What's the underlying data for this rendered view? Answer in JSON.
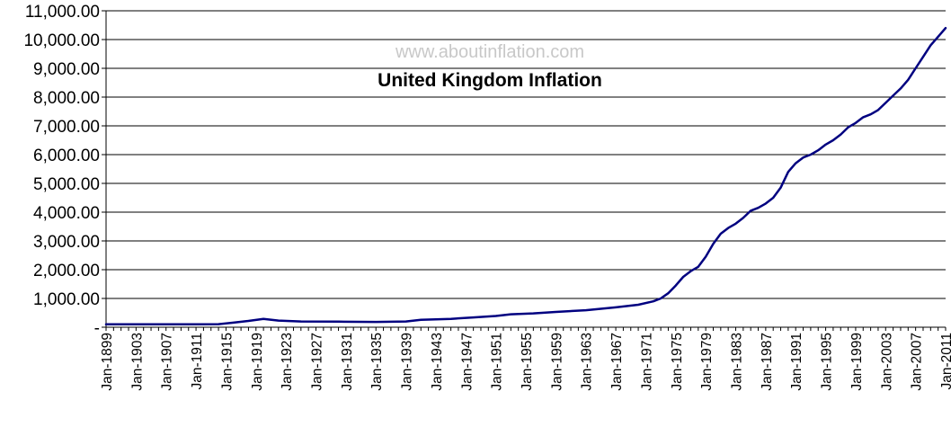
{
  "chart_data": {
    "type": "line",
    "title": "United Kingdom  Inflation",
    "watermark": "www.aboutinflation.com",
    "xlabel": "",
    "ylabel": "",
    "ylim": [
      0,
      11000
    ],
    "yticks": [
      {
        "value": 0,
        "label": "-"
      },
      {
        "value": 1000,
        "label": "1,000.00"
      },
      {
        "value": 2000,
        "label": "2,000.00"
      },
      {
        "value": 3000,
        "label": "3,000.00"
      },
      {
        "value": 4000,
        "label": "4,000.00"
      },
      {
        "value": 5000,
        "label": "5,000.00"
      },
      {
        "value": 6000,
        "label": "6,000.00"
      },
      {
        "value": 7000,
        "label": "7,000.00"
      },
      {
        "value": 8000,
        "label": "8,000.00"
      },
      {
        "value": 9000,
        "label": "9,000.00"
      },
      {
        "value": 10000,
        "label": "10,000.00"
      },
      {
        "value": 11000,
        "label": "11,000.00"
      }
    ],
    "xlim": [
      1899,
      2011
    ],
    "xticks": [
      {
        "value": 1899,
        "label": "Jan-1899"
      },
      {
        "value": 1903,
        "label": "Jan-1903"
      },
      {
        "value": 1907,
        "label": "Jan-1907"
      },
      {
        "value": 1911,
        "label": "Jan-1911"
      },
      {
        "value": 1915,
        "label": "Jan-1915"
      },
      {
        "value": 1919,
        "label": "Jan-1919"
      },
      {
        "value": 1923,
        "label": "Jan-1923"
      },
      {
        "value": 1927,
        "label": "Jan-1927"
      },
      {
        "value": 1931,
        "label": "Jan-1931"
      },
      {
        "value": 1935,
        "label": "Jan-1935"
      },
      {
        "value": 1939,
        "label": "Jan-1939"
      },
      {
        "value": 1943,
        "label": "Jan-1943"
      },
      {
        "value": 1947,
        "label": "Jan-1947"
      },
      {
        "value": 1951,
        "label": "Jan-1951"
      },
      {
        "value": 1955,
        "label": "Jan-1955"
      },
      {
        "value": 1959,
        "label": "Jan-1959"
      },
      {
        "value": 1963,
        "label": "Jan-1963"
      },
      {
        "value": 1967,
        "label": "Jan-1967"
      },
      {
        "value": 1971,
        "label": "Jan-1971"
      },
      {
        "value": 1975,
        "label": "Jan-1975"
      },
      {
        "value": 1979,
        "label": "Jan-1979"
      },
      {
        "value": 1983,
        "label": "Jan-1983"
      },
      {
        "value": 1987,
        "label": "Jan-1987"
      },
      {
        "value": 1991,
        "label": "Jan-1991"
      },
      {
        "value": 1995,
        "label": "Jan-1995"
      },
      {
        "value": 1999,
        "label": "Jan-1999"
      },
      {
        "value": 2003,
        "label": "Jan-2003"
      },
      {
        "value": 2007,
        "label": "Jan-2007"
      },
      {
        "value": 2011,
        "label": "Jan-2011"
      }
    ],
    "grid": true,
    "legend": "none",
    "series": [
      {
        "color": "#000080",
        "points": [
          {
            "x": 1899,
            "y": 100
          },
          {
            "x": 1903,
            "y": 100
          },
          {
            "x": 1907,
            "y": 100
          },
          {
            "x": 1911,
            "y": 100
          },
          {
            "x": 1914,
            "y": 105
          },
          {
            "x": 1916,
            "y": 160
          },
          {
            "x": 1918,
            "y": 220
          },
          {
            "x": 1920,
            "y": 290
          },
          {
            "x": 1922,
            "y": 230
          },
          {
            "x": 1925,
            "y": 200
          },
          {
            "x": 1930,
            "y": 195
          },
          {
            "x": 1935,
            "y": 185
          },
          {
            "x": 1939,
            "y": 200
          },
          {
            "x": 1941,
            "y": 260
          },
          {
            "x": 1945,
            "y": 290
          },
          {
            "x": 1948,
            "y": 340
          },
          {
            "x": 1951,
            "y": 390
          },
          {
            "x": 1953,
            "y": 450
          },
          {
            "x": 1956,
            "y": 480
          },
          {
            "x": 1959,
            "y": 530
          },
          {
            "x": 1963,
            "y": 590
          },
          {
            "x": 1967,
            "y": 690
          },
          {
            "x": 1970,
            "y": 780
          },
          {
            "x": 1972,
            "y": 900
          },
          {
            "x": 1973,
            "y": 1000
          },
          {
            "x": 1974,
            "y": 1180
          },
          {
            "x": 1975,
            "y": 1450
          },
          {
            "x": 1976,
            "y": 1750
          },
          {
            "x": 1977,
            "y": 1950
          },
          {
            "x": 1978,
            "y": 2100
          },
          {
            "x": 1979,
            "y": 2450
          },
          {
            "x": 1980,
            "y": 2900
          },
          {
            "x": 1981,
            "y": 3250
          },
          {
            "x": 1982,
            "y": 3450
          },
          {
            "x": 1983,
            "y": 3600
          },
          {
            "x": 1984,
            "y": 3800
          },
          {
            "x": 1985,
            "y": 4050
          },
          {
            "x": 1986,
            "y": 4150
          },
          {
            "x": 1987,
            "y": 4300
          },
          {
            "x": 1988,
            "y": 4500
          },
          {
            "x": 1989,
            "y": 4850
          },
          {
            "x": 1990,
            "y": 5400
          },
          {
            "x": 1991,
            "y": 5700
          },
          {
            "x": 1992,
            "y": 5900
          },
          {
            "x": 1993,
            "y": 6000
          },
          {
            "x": 1994,
            "y": 6150
          },
          {
            "x": 1995,
            "y": 6350
          },
          {
            "x": 1996,
            "y": 6500
          },
          {
            "x": 1997,
            "y": 6700
          },
          {
            "x": 1998,
            "y": 6950
          },
          {
            "x": 1999,
            "y": 7100
          },
          {
            "x": 2000,
            "y": 7300
          },
          {
            "x": 2001,
            "y": 7400
          },
          {
            "x": 2002,
            "y": 7550
          },
          {
            "x": 2003,
            "y": 7800
          },
          {
            "x": 2004,
            "y": 8050
          },
          {
            "x": 2005,
            "y": 8300
          },
          {
            "x": 2006,
            "y": 8600
          },
          {
            "x": 2007,
            "y": 9000
          },
          {
            "x": 2008,
            "y": 9400
          },
          {
            "x": 2009,
            "y": 9800
          },
          {
            "x": 2010,
            "y": 10100
          },
          {
            "x": 2011,
            "y": 10400
          }
        ]
      }
    ]
  }
}
